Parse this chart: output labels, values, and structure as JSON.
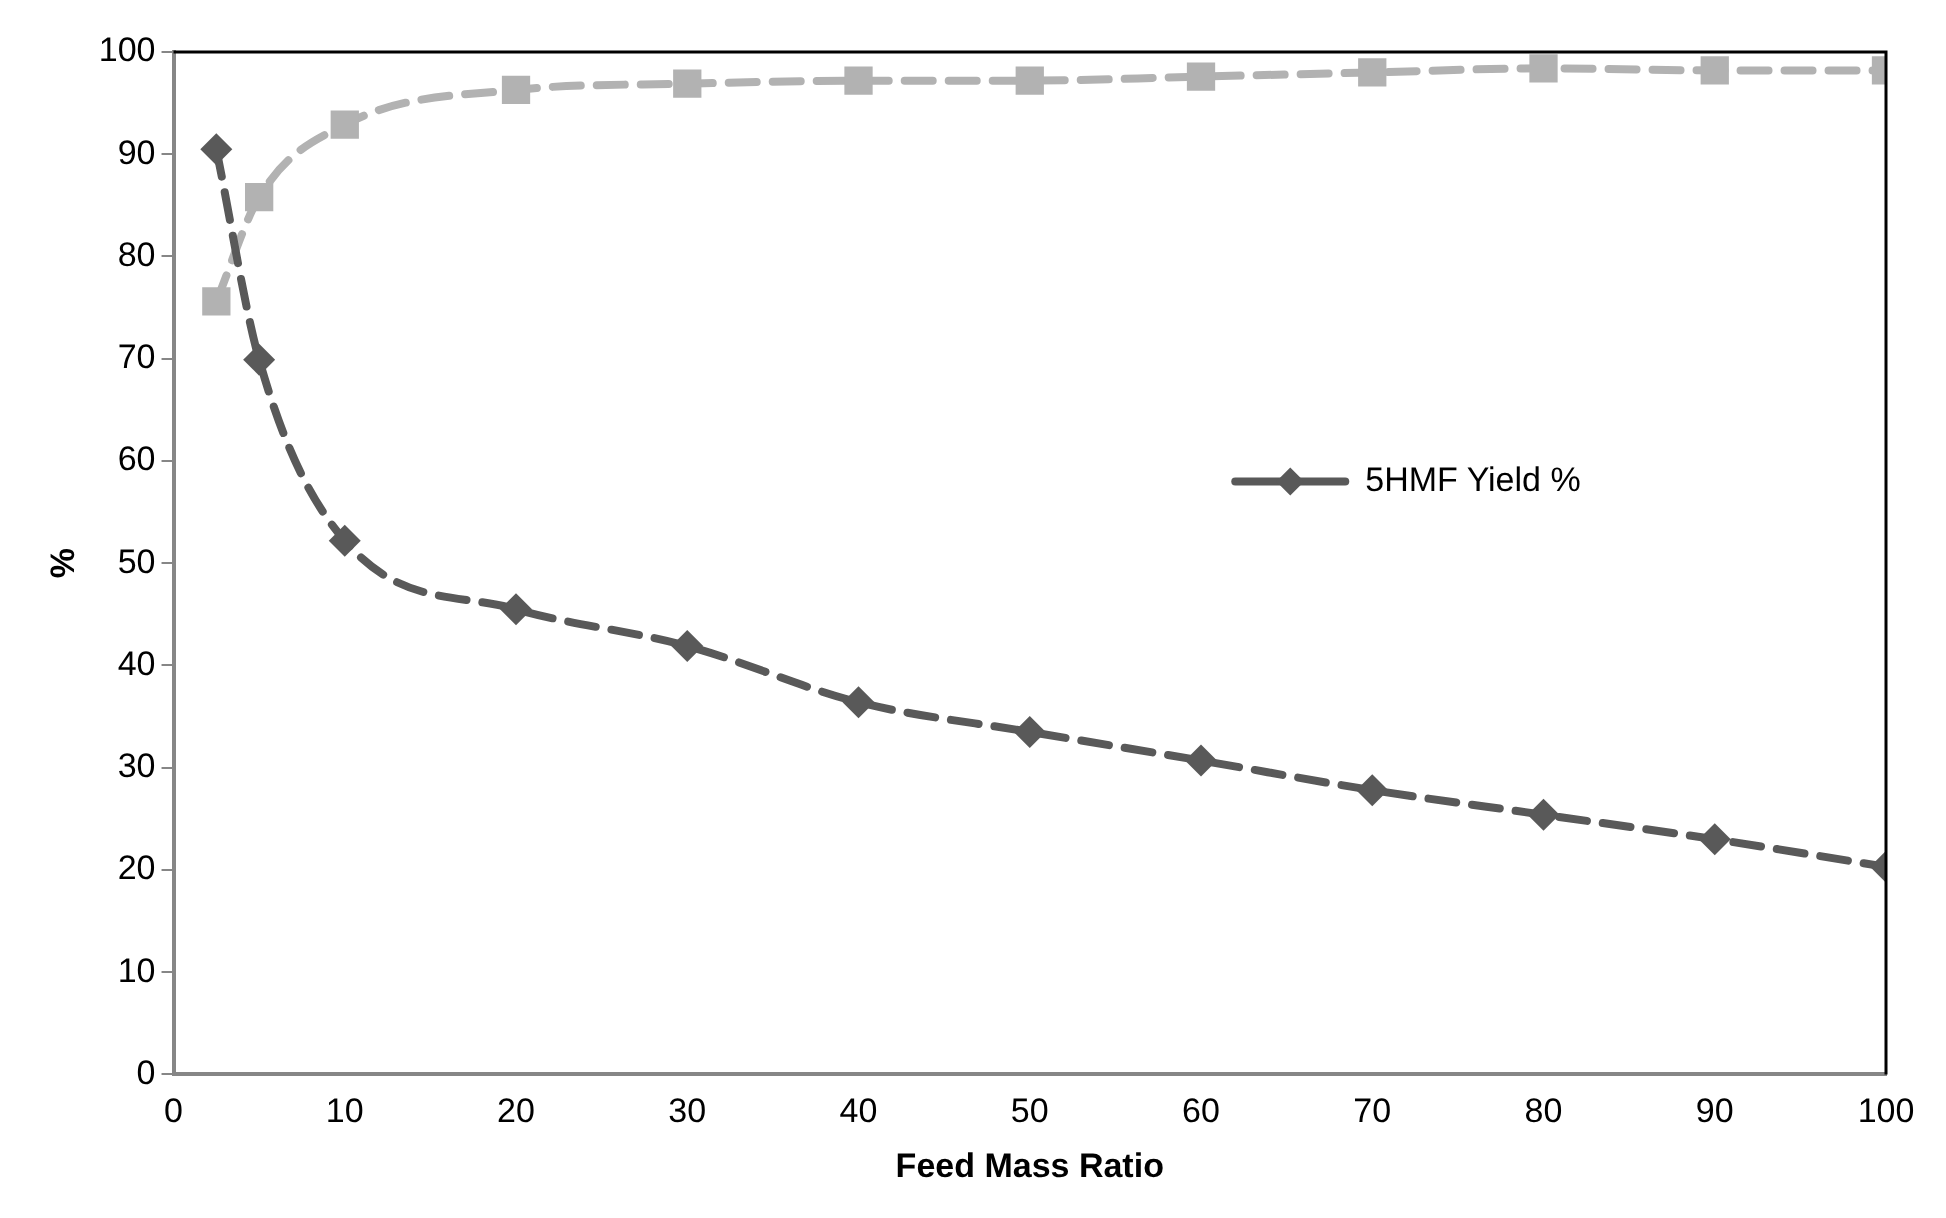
{
  "chart_data": {
    "type": "line",
    "xlabel": "Feed Mass Ratio",
    "ylabel": "%",
    "xlim": [
      0,
      100
    ],
    "xticks": [
      0,
      10,
      20,
      30,
      40,
      50,
      60,
      70,
      80,
      90,
      100
    ],
    "ylim": [
      0,
      100
    ],
    "yticks": [
      0,
      10,
      20,
      30,
      40,
      50,
      60,
      70,
      80,
      90,
      100
    ],
    "grid": false,
    "legend": "right",
    "line_style": "dashed",
    "series": [
      {
        "name": "5HMF Yield %",
        "color": "#595959",
        "marker": "diamond",
        "x": [
          2.5,
          5,
          10,
          20,
          30,
          40,
          50,
          60,
          70,
          80,
          90,
          100
        ],
        "values": [
          90.5,
          69.9,
          52.2,
          45.5,
          41.9,
          36.4,
          33.5,
          30.7,
          27.8,
          25.4,
          23.0,
          20.3
        ]
      },
      {
        "color": "#b2b2b2",
        "marker": "square",
        "x": [
          2.5,
          5,
          10,
          20,
          30,
          40,
          50,
          60,
          70,
          80,
          90,
          100
        ],
        "values": [
          75.6,
          85.8,
          92.9,
          96.3,
          96.9,
          97.2,
          97.2,
          97.6,
          98.0,
          98.4,
          98.2,
          98.2
        ]
      }
    ]
  }
}
